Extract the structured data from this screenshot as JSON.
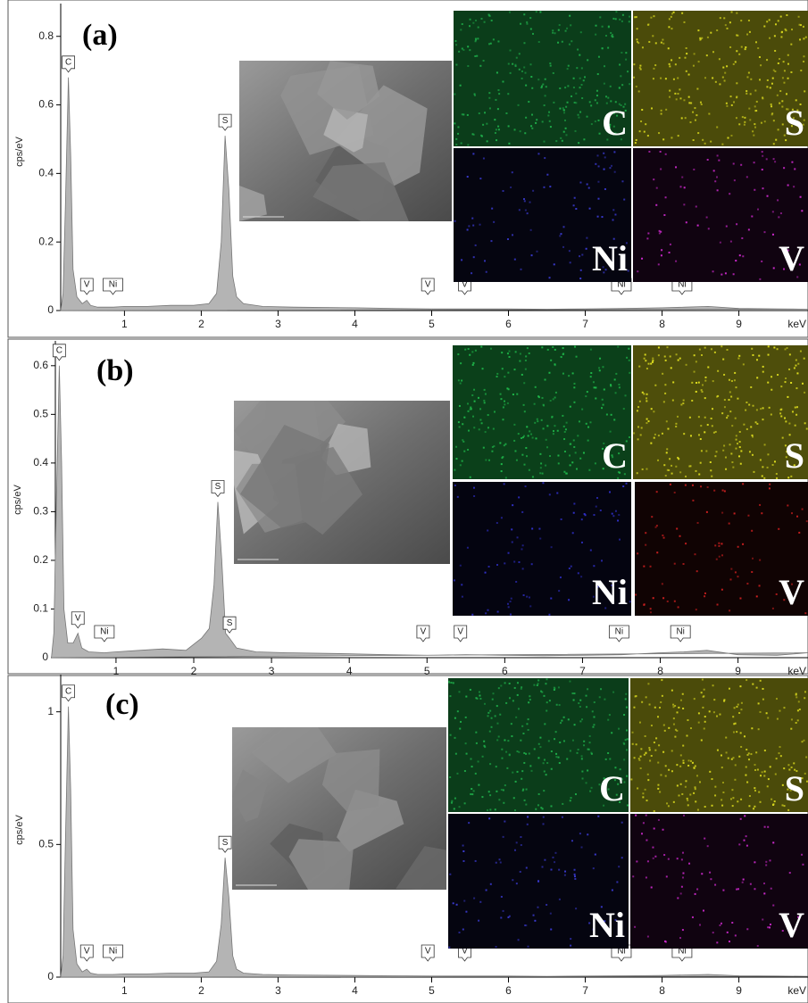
{
  "chart_data": [
    {
      "type": "area",
      "panel_label": "(a)",
      "y_label": "cps/eV",
      "x_label": "keV",
      "color": "#b4b4b4",
      "x": [
        0.17,
        0.2,
        0.23,
        0.27,
        0.3,
        0.33,
        0.38,
        0.45,
        0.51,
        0.56,
        0.65,
        0.85,
        1.0,
        1.3,
        1.6,
        1.9,
        2.1,
        2.2,
        2.26,
        2.31,
        2.36,
        2.41,
        2.46,
        2.55,
        2.8,
        3.2,
        4,
        4.5,
        5,
        5.5,
        6,
        6.5,
        7,
        7.5,
        8,
        8.3,
        8.6,
        9,
        9.5,
        9.9
      ],
      "values": [
        0,
        0.05,
        0.3,
        0.68,
        0.45,
        0.12,
        0.04,
        0.02,
        0.03,
        0.015,
        0.01,
        0.01,
        0.012,
        0.012,
        0.015,
        0.015,
        0.02,
        0.05,
        0.2,
        0.51,
        0.35,
        0.1,
        0.04,
        0.02,
        0.012,
        0.01,
        0.008,
        0.006,
        0.005,
        0.005,
        0.005,
        0.004,
        0.005,
        0.006,
        0.008,
        0.01,
        0.012,
        0.006,
        0.005,
        0.004
      ],
      "xlim": [
        0.17,
        9.9
      ],
      "ylim": [
        0,
        0.88
      ],
      "xticks": [
        1,
        2,
        3,
        4,
        5,
        6,
        7,
        8,
        9
      ],
      "yticks": [
        0,
        0.2,
        0.4,
        0.6,
        0.8
      ],
      "annotations": [
        {
          "text": "C",
          "x": 0.27
        },
        {
          "text": "V",
          "x": 0.51
        },
        {
          "text": "Ni",
          "x": 0.85
        },
        {
          "text": "S",
          "x": 2.31
        },
        {
          "text": "V",
          "x": 4.95
        },
        {
          "text": "V",
          "x": 5.43
        },
        {
          "text": "Ni",
          "x": 7.47
        },
        {
          "text": "Ni",
          "x": 8.26
        }
      ],
      "maps": [
        {
          "label": "C",
          "color": "#1fae4a"
        },
        {
          "label": "S",
          "color": "#d6d61e"
        },
        {
          "label": "Ni",
          "color": "#3a3ad0"
        },
        {
          "label": "V",
          "color": "#d02ad0"
        }
      ]
    },
    {
      "type": "area",
      "panel_label": "(b)",
      "y_label": "cps/eV",
      "x_label": "keV",
      "color": "#b4b4b4",
      "x": [
        0.17,
        0.2,
        0.23,
        0.27,
        0.3,
        0.33,
        0.38,
        0.45,
        0.51,
        0.56,
        0.65,
        0.85,
        1.0,
        1.3,
        1.6,
        1.9,
        2.1,
        2.2,
        2.26,
        2.31,
        2.36,
        2.41,
        2.46,
        2.55,
        2.8,
        3.2,
        4,
        4.5,
        5,
        5.5,
        6,
        6.5,
        7,
        7.5,
        8,
        8.3,
        8.6,
        9,
        9.5,
        9.9
      ],
      "values": [
        0,
        0.05,
        0.3,
        0.6,
        0.4,
        0.1,
        0.03,
        0.03,
        0.05,
        0.02,
        0.012,
        0.01,
        0.012,
        0.015,
        0.018,
        0.015,
        0.04,
        0.06,
        0.15,
        0.32,
        0.2,
        0.05,
        0.04,
        0.02,
        0.012,
        0.01,
        0.008,
        0.006,
        0.005,
        0.006,
        0.005,
        0.004,
        0.005,
        0.006,
        0.01,
        0.012,
        0.015,
        0.006,
        0.005,
        0.01
      ],
      "xlim": [
        0.22,
        9.9
      ],
      "ylim": [
        0,
        0.64
      ],
      "xticks": [
        1,
        2,
        3,
        4,
        5,
        6,
        7,
        8,
        9
      ],
      "yticks": [
        0,
        0.1,
        0.2,
        0.3,
        0.4,
        0.5,
        0.6
      ],
      "annotations": [
        {
          "text": "C",
          "x": 0.27
        },
        {
          "text": "V",
          "x": 0.51
        },
        {
          "text": "Ni",
          "x": 0.85
        },
        {
          "text": "S",
          "x": 2.31
        },
        {
          "text": "S",
          "x": 2.46
        },
        {
          "text": "V",
          "x": 4.95
        },
        {
          "text": "V",
          "x": 5.43
        },
        {
          "text": "Ni",
          "x": 7.47
        },
        {
          "text": "Ni",
          "x": 8.26
        }
      ],
      "maps": [
        {
          "label": "C",
          "color": "#1fb84a"
        },
        {
          "label": "S",
          "color": "#e0e020"
        },
        {
          "label": "Ni",
          "color": "#3030c8"
        },
        {
          "label": "V",
          "color": "#d02020"
        }
      ]
    },
    {
      "type": "area",
      "panel_label": "(c)",
      "y_label": "cps/eV",
      "x_label": "keV",
      "color": "#b4b4b4",
      "x": [
        0.17,
        0.2,
        0.23,
        0.27,
        0.3,
        0.33,
        0.38,
        0.45,
        0.51,
        0.56,
        0.65,
        0.85,
        1.0,
        1.3,
        1.6,
        1.9,
        2.1,
        2.2,
        2.26,
        2.31,
        2.36,
        2.41,
        2.46,
        2.55,
        2.8,
        3.2,
        4,
        4.5,
        5,
        5.5,
        6,
        6.5,
        7,
        7.5,
        8,
        8.3,
        8.6,
        9,
        9.5,
        9.9
      ],
      "values": [
        0,
        0.08,
        0.5,
        1.02,
        0.7,
        0.18,
        0.05,
        0.02,
        0.03,
        0.015,
        0.01,
        0.01,
        0.012,
        0.012,
        0.015,
        0.015,
        0.02,
        0.06,
        0.2,
        0.45,
        0.3,
        0.08,
        0.03,
        0.015,
        0.01,
        0.008,
        0.006,
        0.005,
        0.004,
        0.004,
        0.004,
        0.003,
        0.004,
        0.005,
        0.006,
        0.008,
        0.01,
        0.005,
        0.004,
        0.003
      ],
      "xlim": [
        0.17,
        9.9
      ],
      "ylim": [
        0,
        1.12
      ],
      "xticks": [
        1,
        2,
        3,
        4,
        5,
        6,
        7,
        8,
        9
      ],
      "yticks": [
        0,
        0.5,
        1
      ],
      "annotations": [
        {
          "text": "C",
          "x": 0.27
        },
        {
          "text": "V",
          "x": 0.51
        },
        {
          "text": "Ni",
          "x": 0.85
        },
        {
          "text": "S",
          "x": 2.31
        },
        {
          "text": "V",
          "x": 4.95
        },
        {
          "text": "V",
          "x": 5.43
        },
        {
          "text": "Ni",
          "x": 7.47
        },
        {
          "text": "Ni",
          "x": 8.26
        }
      ],
      "maps": [
        {
          "label": "C",
          "color": "#1fae4a"
        },
        {
          "label": "S",
          "color": "#d6d61e"
        },
        {
          "label": "Ni",
          "color": "#3a3ad0"
        },
        {
          "label": "V",
          "color": "#d02ad0"
        }
      ]
    }
  ]
}
